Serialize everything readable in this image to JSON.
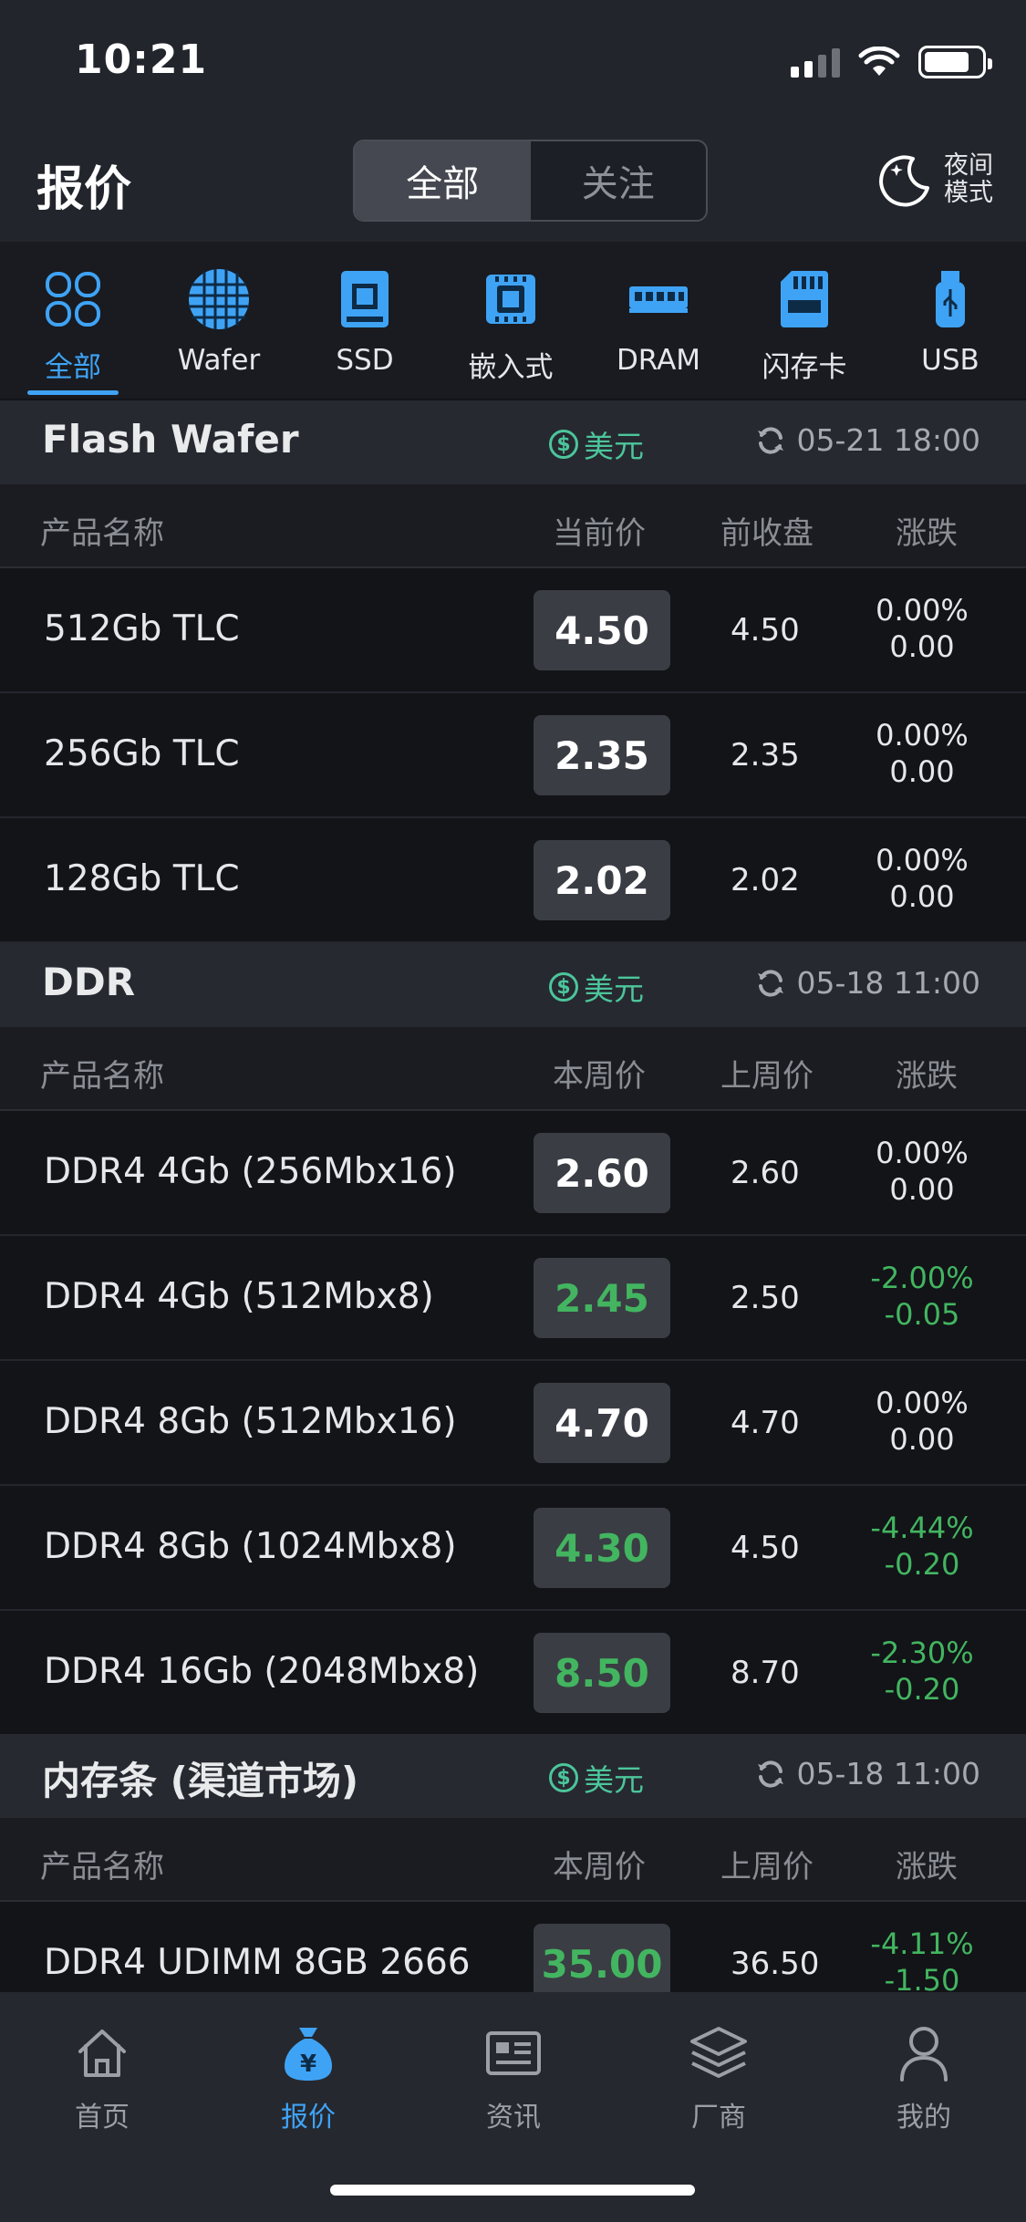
{
  "status_bar": {
    "time": "10:21"
  },
  "header": {
    "title": "报价",
    "segments": [
      "全部",
      "关注"
    ],
    "night_mode": {
      "line1": "夜间",
      "line2": "模式"
    }
  },
  "categories": [
    {
      "label": "全部",
      "icon": "grid-icon",
      "active": true
    },
    {
      "label": "Wafer",
      "icon": "wafer-icon"
    },
    {
      "label": "SSD",
      "icon": "ssd-icon"
    },
    {
      "label": "嵌入式",
      "icon": "chip-icon"
    },
    {
      "label": "DRAM",
      "icon": "dram-icon"
    },
    {
      "label": "闪存卡",
      "icon": "sd-card-icon"
    },
    {
      "label": "USB",
      "icon": "usb-icon"
    }
  ],
  "sections": [
    {
      "title": "Flash Wafer",
      "currency": "美元",
      "updated": "05-21 18:00",
      "columns": [
        "产品名称",
        "当前价",
        "前收盘",
        "涨跌"
      ],
      "rows": [
        {
          "name": "512Gb TLC",
          "price": "4.50",
          "prev": "4.50",
          "pct": "0.00%",
          "diff": "0.00",
          "trend": "flat"
        },
        {
          "name": "256Gb TLC",
          "price": "2.35",
          "prev": "2.35",
          "pct": "0.00%",
          "diff": "0.00",
          "trend": "flat"
        },
        {
          "name": "128Gb TLC",
          "price": "2.02",
          "prev": "2.02",
          "pct": "0.00%",
          "diff": "0.00",
          "trend": "flat"
        }
      ]
    },
    {
      "title": "DDR",
      "currency": "美元",
      "updated": "05-18 11:00",
      "columns": [
        "产品名称",
        "本周价",
        "上周价",
        "涨跌"
      ],
      "rows": [
        {
          "name": "DDR4 4Gb (256Mbx16)",
          "price": "2.60",
          "prev": "2.60",
          "pct": "0.00%",
          "diff": "0.00",
          "trend": "flat"
        },
        {
          "name": "DDR4 4Gb (512Mbx8)",
          "price": "2.45",
          "prev": "2.50",
          "pct": "-2.00%",
          "diff": "-0.05",
          "trend": "down"
        },
        {
          "name": "DDR4 8Gb (512Mbx16)",
          "price": "4.70",
          "prev": "4.70",
          "pct": "0.00%",
          "diff": "0.00",
          "trend": "flat"
        },
        {
          "name": "DDR4 8Gb (1024Mbx8)",
          "price": "4.30",
          "prev": "4.50",
          "pct": "-4.44%",
          "diff": "-0.20",
          "trend": "down"
        },
        {
          "name": "DDR4 16Gb (2048Mbx8)",
          "price": "8.50",
          "prev": "8.70",
          "pct": "-2.30%",
          "diff": "-0.20",
          "trend": "down"
        }
      ]
    },
    {
      "title": "内存条 (渠道市场)",
      "currency": "美元",
      "updated": "05-18 11:00",
      "columns": [
        "产品名称",
        "本周价",
        "上周价",
        "涨跌"
      ],
      "rows": [
        {
          "name": "DDR4 UDIMM 8GB 2666",
          "price": "35.00",
          "prev": "36.50",
          "pct": "-4.11%",
          "diff": "-1.50",
          "trend": "down"
        }
      ]
    }
  ],
  "tabbar": [
    {
      "label": "首页",
      "icon": "home-icon"
    },
    {
      "label": "报价",
      "icon": "money-bag-icon",
      "active": true
    },
    {
      "label": "资讯",
      "icon": "news-icon"
    },
    {
      "label": "厂商",
      "icon": "layers-icon"
    },
    {
      "label": "我的",
      "icon": "user-icon"
    }
  ],
  "colors": {
    "accent": "#3fa3f5",
    "down": "#43b560",
    "currency": "#4cc59b"
  }
}
